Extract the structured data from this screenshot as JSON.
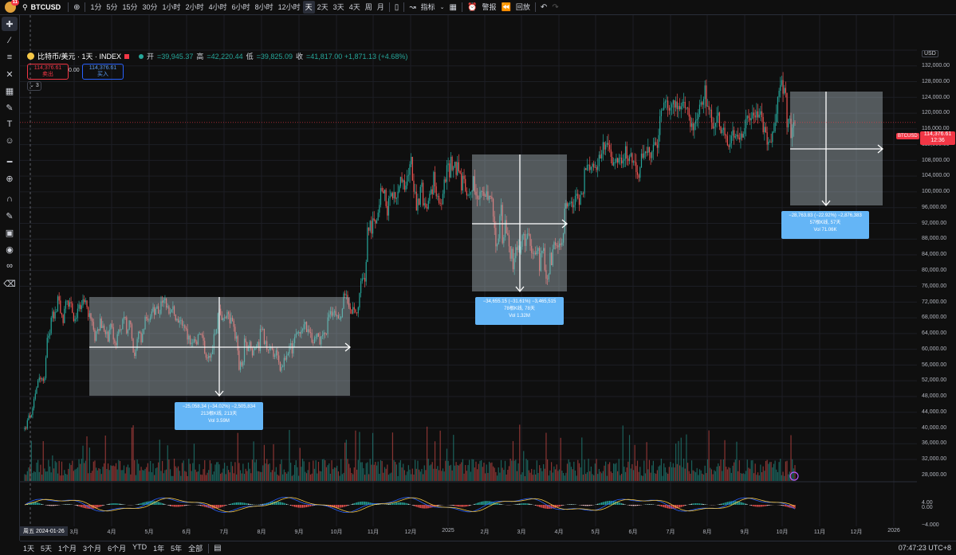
{
  "toolbar": {
    "notif_count": "11",
    "symbol": "BTCUSD",
    "intervals": [
      "1分",
      "5分",
      "15分",
      "30分",
      "1小时",
      "2小时",
      "4小时",
      "6小时",
      "8小时",
      "12小时",
      "天",
      "2天",
      "3天",
      "4天",
      "周",
      "月"
    ],
    "active_interval": "天",
    "indicators_label": "指标",
    "alert_label": "警报",
    "replay_label": "回放"
  },
  "legend": {
    "title": "比特币/美元 · 1天 · INDEX",
    "open_k": "开",
    "open_v": "=39,945.37",
    "high_k": "高",
    "high_v": "=42,220.44",
    "low_k": "低",
    "low_v": "=39,825.09",
    "close_k": "收",
    "close_v": "=41,817.00 +1,871.13 (+4.68%)",
    "sell_price": "114,376.61",
    "sell_label": "卖出",
    "spread": "0.00",
    "buy_price": "114,376.61",
    "buy_label": "买入",
    "collapse_count": "3"
  },
  "measures": [
    {
      "line1": "−25,058.34 (−34.02%) −2,505,834",
      "line2": "213根K线, 213天",
      "line3": "Vol 3.59M"
    },
    {
      "line1": "−34,655.15 (−31.61%) −3,465,515",
      "line2": "78根K线, 78天",
      "line3": "Vol 1.32M"
    },
    {
      "line1": "−28,763.83 (−22.92%) −2,876,383",
      "line2": "57根K线, 57天",
      "line3": "Vol 71.06K"
    }
  ],
  "yaxis": {
    "currency": "USD",
    "labels": [
      "132,000.00",
      "128,000.00",
      "124,000.00",
      "120,000.00",
      "116,000.00",
      "112,000.00",
      "108,000.00",
      "104,000.00",
      "100,000.00",
      "96,000.00",
      "92,000.00",
      "88,000.00",
      "84,000.00",
      "80,000.00",
      "76,000.00",
      "72,000.00",
      "68,000.00",
      "64,000.00",
      "60,000.00",
      "56,000.00",
      "52,000.00",
      "48,000.00",
      "44,000.00",
      "40,000.00",
      "36,000.00",
      "32,000.00",
      "28,000.00"
    ],
    "osc_labels": [
      "4.00",
      "0.00",
      "−4.000"
    ],
    "current_tag": "BTCUSD",
    "current_price": "114,376.61",
    "current_countdown": "12:36"
  },
  "xaxis": {
    "date_tag": "周五 2024-01-26",
    "labels": [
      "3月",
      "4月",
      "5月",
      "6月",
      "7月",
      "8月",
      "9月",
      "10月",
      "11月",
      "12月",
      "2025",
      "2月",
      "3月",
      "4月",
      "5月",
      "6月",
      "7月",
      "8月",
      "9月",
      "10月",
      "11月",
      "12月",
      "2026"
    ]
  },
  "bottom": {
    "ranges": [
      "1天",
      "5天",
      "1个月",
      "3个月",
      "6个月",
      "YTD",
      "1年",
      "5年",
      "全部"
    ],
    "clock": "07:47:23 UTC+8"
  },
  "colors": {
    "up": "#26a69a",
    "down": "#ef5350",
    "measure_fill": "#b2c0c8",
    "stat_box": "#64b5f6",
    "current": "#f23645"
  },
  "chart_data": {
    "type": "candlestick",
    "ylim": [
      28000,
      134000
    ],
    "close": [
      40000,
      39800,
      41817,
      43000,
      42500,
      43100,
      44800,
      47000,
      48300,
      49800,
      51500,
      52200,
      51800,
      52000,
      51400,
      52100,
      57100,
      61900,
      62400,
      63000,
      66800,
      68300,
      66600,
      68200,
      68300,
      72000,
      71000,
      68000,
      67500,
      65500,
      69000,
      70800,
      71000,
      69500,
      70600,
      70300,
      68000,
      66000,
      66500,
      66800,
      69000,
      70000,
      68900,
      69800,
      71300,
      70600,
      71000,
      69400,
      67000,
      67900,
      66600,
      65800,
      63900,
      61200,
      63500,
      64000,
      63700,
      66600,
      64300,
      64900,
      63600,
      62800,
      63400,
      61000,
      63900,
      65300,
      64500,
      61500,
      60600,
      60100,
      62800,
      63900,
      63800,
      64000,
      66400,
      67000,
      66900,
      63000,
      63800,
      66100,
      65200,
      61700,
      58300,
      57500,
      59000,
      61600,
      63400,
      63100,
      60800,
      62900,
      64000,
      67000,
      66600,
      66200,
      66300,
      67100,
      68300,
      69400,
      67500,
      69000,
      69600,
      67800,
      67800,
      70800,
      70500,
      71100,
      71500,
      69300,
      69600,
      67800,
      68200,
      68800,
      69600,
      67600,
      66200,
      66500,
      65600,
      66100,
      66200,
      64900,
      65000,
      64300,
      64100,
      61500,
      62400,
      60400,
      60700,
      60700,
      61600,
      61000,
      60300,
      62700,
      62900,
      62800,
      62500,
      61200,
      58100,
      57100,
      56900,
      57500,
      57100,
      57900,
      59000,
      62800,
      63000,
      64000,
      67900,
      69000,
      67500,
      66200,
      66700,
      66900,
      66700,
      68200,
      67700,
      65400,
      66800,
      66000,
      64600,
      61700,
      62300,
      58800,
      54100,
      56000,
      55100,
      56000,
      61700,
      60800,
      58700,
      59500,
      60900,
      59300,
      57600,
      58900,
      59500,
      59800,
      60900,
      58700,
      64100,
      64000,
      64100,
      60400,
      61100,
      59000,
      58900,
      59400,
      59500,
      59100,
      57300,
      57600,
      58900,
      57600,
      56000,
      53900,
      54800,
      54900,
      57000,
      56600,
      57600,
      58100,
      60000,
      60600,
      58100,
      60600,
      62100,
      62900,
      63200,
      63300,
      62900,
      63700,
      64000,
      65200,
      65800,
      63300,
      64000,
      63300,
      63100,
      60800,
      60600,
      62000,
      62100,
      63000,
      62200,
      60300,
      62300,
      62600,
      63200,
      62900,
      62800,
      66900,
      67600,
      68400,
      67300,
      68100,
      68400,
      67400,
      67400,
      66600,
      66600,
      67000,
      69000,
      72700,
      72300,
      72400,
      70300,
      69400,
      68800,
      67800,
      69400,
      68800,
      68100,
      67900,
      69300,
      72800,
      75700,
      76400,
      76500,
      75600,
      80400,
      88800,
      88000,
      90400,
      87300,
      91000,
      90600,
      89800,
      90500,
      92400,
      94300,
      98400,
      97700,
      97100,
      98000,
      94000,
      91700,
      95900,
      96400,
      97200,
      95900,
      97400,
      95800,
      96000,
      97500,
      98800,
      101100,
      99900,
      100300,
      98000,
      99000,
      101400,
      101600,
      104200,
      106000,
      100200,
      97500,
      97500,
      92900,
      95800,
      94300,
      98700,
      99700,
      94200,
      94700,
      93700,
      93400,
      95300,
      97000,
      98100,
      96900,
      102300,
      98800,
      96400,
      96500,
      94800,
      94600,
      94500,
      97000,
      100500,
      99900,
      104000,
      104400,
      101000,
      106000,
      102800,
      103600,
      104800,
      101600,
      104700,
      102500,
      102000,
      97800,
      101400,
      100600,
      97700,
      96600,
      96600,
      96800,
      97500,
      97800,
      101300,
      97500,
      96600,
      95800,
      95700,
      97500,
      97600,
      97500,
      96500,
      96300,
      97600,
      95600,
      96500,
      96300,
      95800,
      91500,
      88700,
      84200,
      84700,
      86100,
      91600,
      94300,
      85000,
      86400,
      90600,
      87400,
      86900,
      84200,
      81200,
      83600,
      78600,
      81300,
      84000,
      83300,
      84400,
      82600,
      84100,
      86900,
      87200,
      84300,
      86100,
      87300,
      87200,
      84300,
      82600,
      82400,
      82600,
      82300,
      83100,
      83800,
      78200,
      82500,
      83100,
      83800,
      78400,
      76300,
      76200,
      77400,
      82600,
      79600,
      83500,
      85200,
      84500,
      84400,
      84000,
      84900,
      84500,
      85100,
      87400,
      93400,
      94700,
      93900,
      94700,
      94700,
      95100,
      93700,
      94300,
      96500,
      97000,
      95900,
      94300,
      96800,
      97100,
      97000,
      103200,
      102800,
      104000,
      104100,
      102800,
      103600,
      104300,
      103400,
      103500,
      102800,
      103700,
      106500,
      105600,
      106800,
      109600,
      107800,
      109000,
      109400,
      108900,
      107800,
      106000,
      103900,
      104700,
      104700,
      105700,
      104600,
      105700,
      105800,
      104400,
      105100,
      105500,
      108600,
      105600,
      105000,
      106100,
      106900,
      104600,
      104900,
      104700,
      102300,
      101600,
      100900,
      103400,
      106800,
      105800,
      106900,
      107300,
      107000,
      108400,
      107100,
      105700,
      107300,
      108900,
      109600,
      108900,
      108200,
      111300,
      115900,
      117300,
      117500,
      119200,
      119500,
      119700,
      117900,
      117300,
      118000,
      118800,
      119800,
      118000,
      119500,
      117600,
      118400,
      117600,
      118300,
      119400,
      119400,
      117900,
      118000,
      117900,
      115800,
      113300,
      114200,
      112500,
      114100,
      114900,
      115200,
      116400,
      118700,
      119300,
      118700,
      120100,
      123400,
      118300,
      118400,
      117500,
      117500,
      114300,
      112900,
      113400,
      114300,
      116000,
      116800,
      113400,
      111800,
      112600,
      113100,
      111300,
      111100,
      108800,
      108400,
      109300,
      111200,
      112500,
      110700,
      111000,
      111400,
      110700,
      110200,
      111700,
      110700,
      111600,
      113000,
      115300,
      116000,
      115500,
      114900,
      115400,
      116800,
      116100,
      115600,
      117100,
      115600,
      116300,
      117100,
      115700,
      112000,
      113300,
      112000,
      109000,
      109700,
      109700,
      109600,
      112100,
      112200,
      114400,
      116500,
      120600,
      122100,
      123500,
      124700,
      121400,
      122800,
      121600,
      113200,
      115200,
      115300,
      110600,
      113100,
      114400,
      114376
    ]
  }
}
